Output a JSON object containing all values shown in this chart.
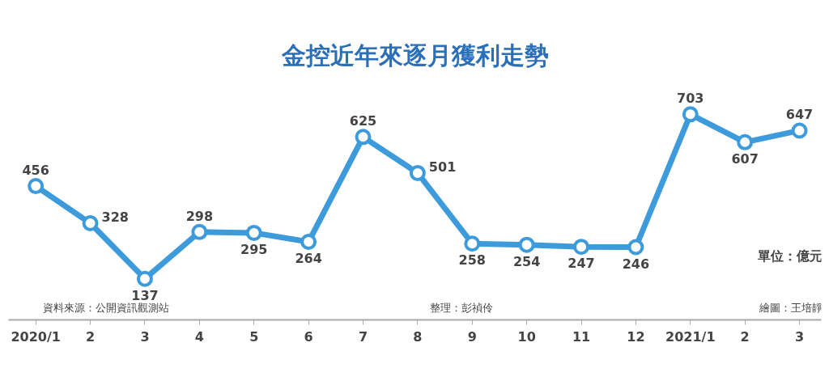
{
  "chart_data": {
    "type": "line",
    "title": "金控近年來逐月獲利走勢",
    "categories": [
      "2020/1",
      "2",
      "3",
      "4",
      "5",
      "6",
      "7",
      "8",
      "9",
      "10",
      "11",
      "12",
      "2021/1",
      "2",
      "3"
    ],
    "series": [
      {
        "color": "#3d9bdc",
        "values": [
          456,
          328,
          137,
          298,
          295,
          264,
          625,
          501,
          258,
          254,
          247,
          246,
          703,
          607,
          647
        ]
      }
    ],
    "data_labels": true,
    "marker": "circle",
    "annotations": [
      "單位：億元",
      "資料來源：公開資訊觀測站",
      "整理：彭禎伶",
      "繪圖：王培靜"
    ]
  }
}
